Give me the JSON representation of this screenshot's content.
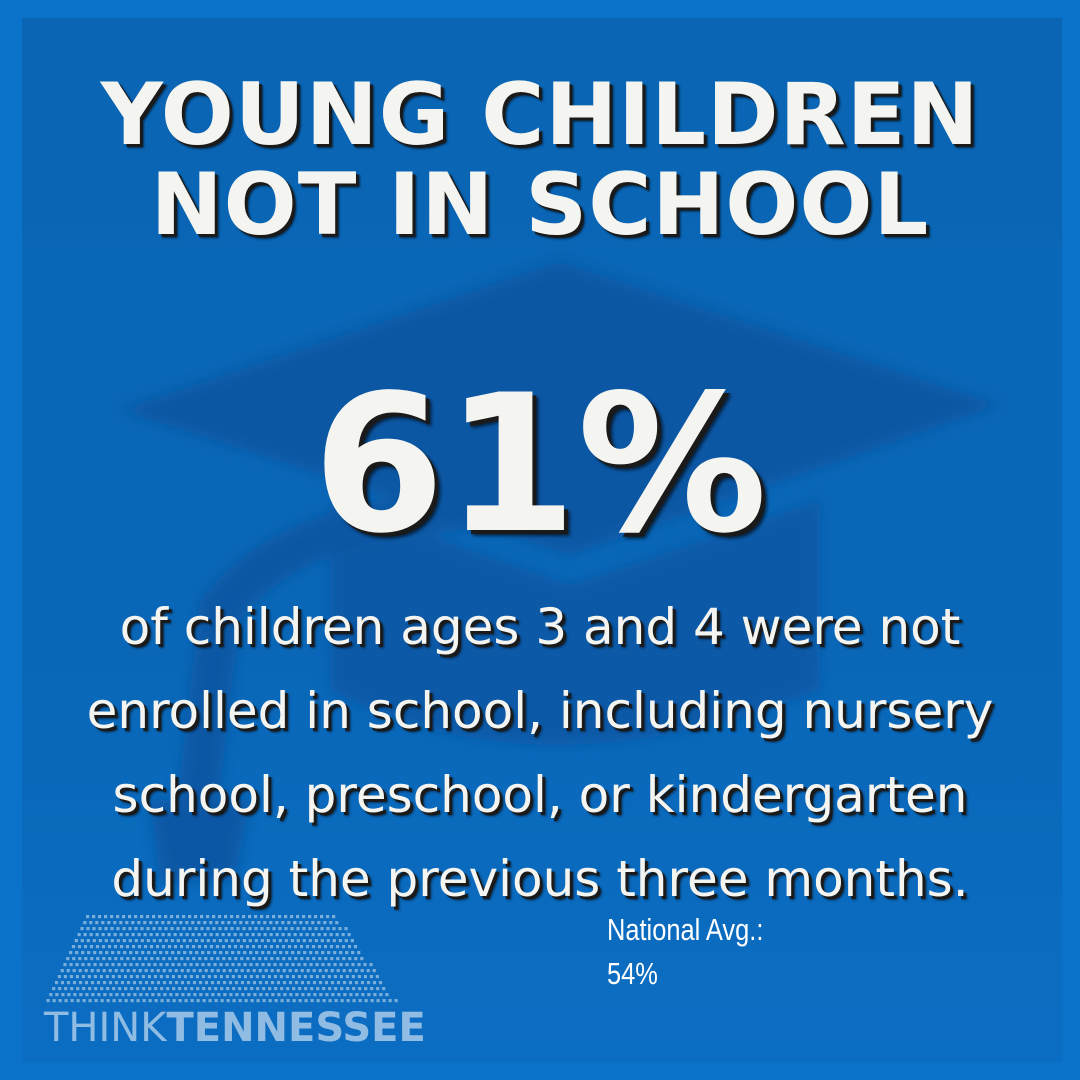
{
  "title": {
    "line1": "YOUNG CHILDREN",
    "line2": "NOT IN SCHOOL"
  },
  "stat": {
    "value": "61%"
  },
  "description": {
    "line1": "of children ages 3 and 4 were not",
    "line2": "enrolled in school, including nursery",
    "line3": "school, preschool, or kindergarten",
    "line4": "during the previous three months."
  },
  "national_average": {
    "label": "National Avg.:",
    "value": "54%"
  },
  "logo": {
    "word1": "THINK",
    "word2": "TENNESSEE"
  },
  "colors": {
    "background": "#0a72c9",
    "panel": "#0a67b8",
    "text": "#f4f4f0",
    "shadow": "#1a1a1a"
  },
  "icons": {
    "background_graphic": "graduation-cap-icon",
    "logo_graphic": "tennessee-dot-map-icon"
  }
}
